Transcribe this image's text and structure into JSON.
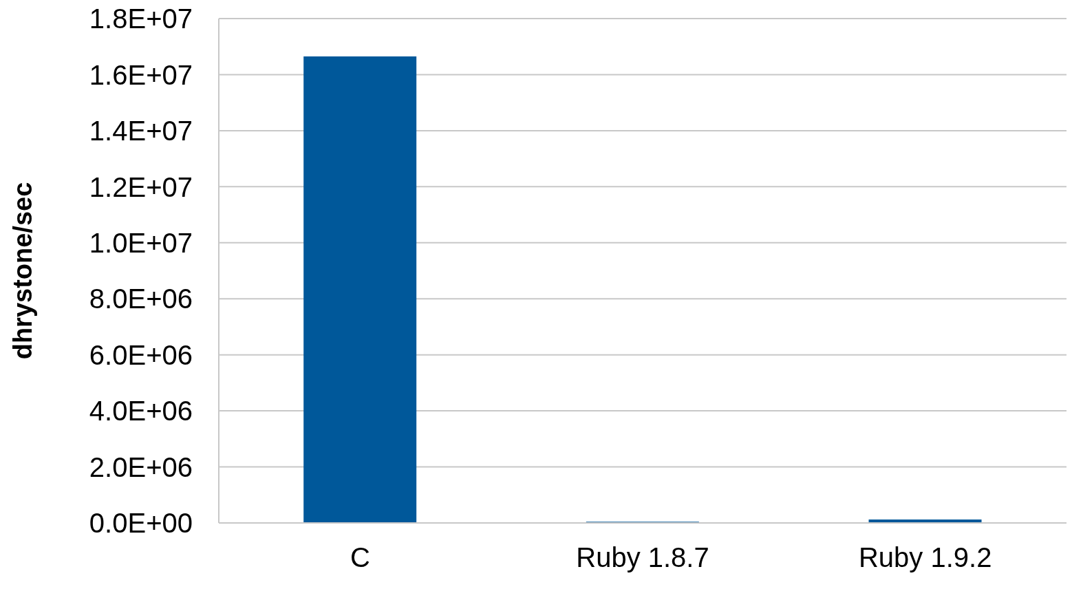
{
  "chart_data": {
    "type": "bar",
    "ylabel": "dhrystone/sec",
    "categories": [
      "C",
      "Ruby 1.8.7",
      "Ruby 1.9.2"
    ],
    "values": [
      16650000,
      40000,
      120000
    ],
    "color": "#00589a",
    "ylim": [
      0,
      18000000
    ],
    "yticks": [
      {
        "value": 0,
        "label": "0.0E+00"
      },
      {
        "value": 2000000,
        "label": "2.0E+06"
      },
      {
        "value": 4000000,
        "label": "4.0E+06"
      },
      {
        "value": 6000000,
        "label": "6.0E+06"
      },
      {
        "value": 8000000,
        "label": "8.0E+06"
      },
      {
        "value": 10000000,
        "label": "1.0E+07"
      },
      {
        "value": 12000000,
        "label": "1.2E+07"
      },
      {
        "value": 14000000,
        "label": "1.4E+07"
      },
      {
        "value": 16000000,
        "label": "1.6E+07"
      },
      {
        "value": 18000000,
        "label": "1.8E+07"
      }
    ],
    "grid": "y"
  }
}
